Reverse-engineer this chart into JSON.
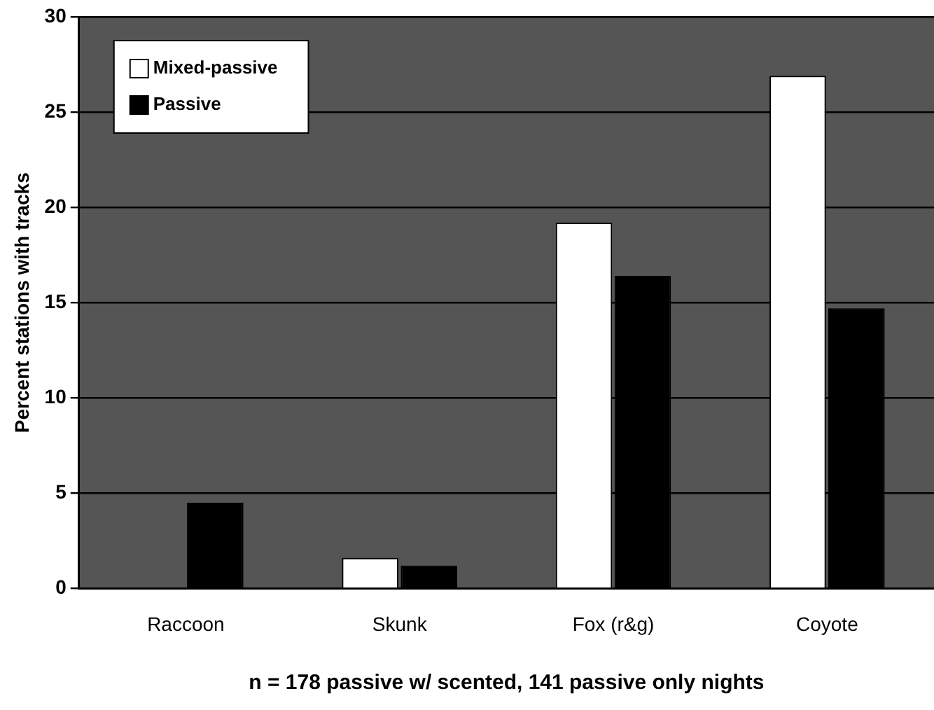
{
  "chart_data": {
    "type": "bar",
    "xlabel": "n = 178 passive w/ scented, 141 passive only nights",
    "ylabel": "Percent stations with tracks",
    "categories": [
      "Raccoon",
      "Skunk",
      "Fox (r&g)",
      "Coyote"
    ],
    "series": [
      {
        "name": "Mixed-passive",
        "color": "#ffffff",
        "values": [
          0,
          1.6,
          19.2,
          26.9
        ]
      },
      {
        "name": "Passive",
        "color": "#000000",
        "values": [
          4.5,
          1.2,
          16.4,
          14.7
        ]
      }
    ],
    "ylim": [
      0,
      30
    ],
    "yticks": [
      0,
      5,
      10,
      15,
      20,
      25,
      30
    ],
    "grid": "y",
    "legend": "top left"
  }
}
